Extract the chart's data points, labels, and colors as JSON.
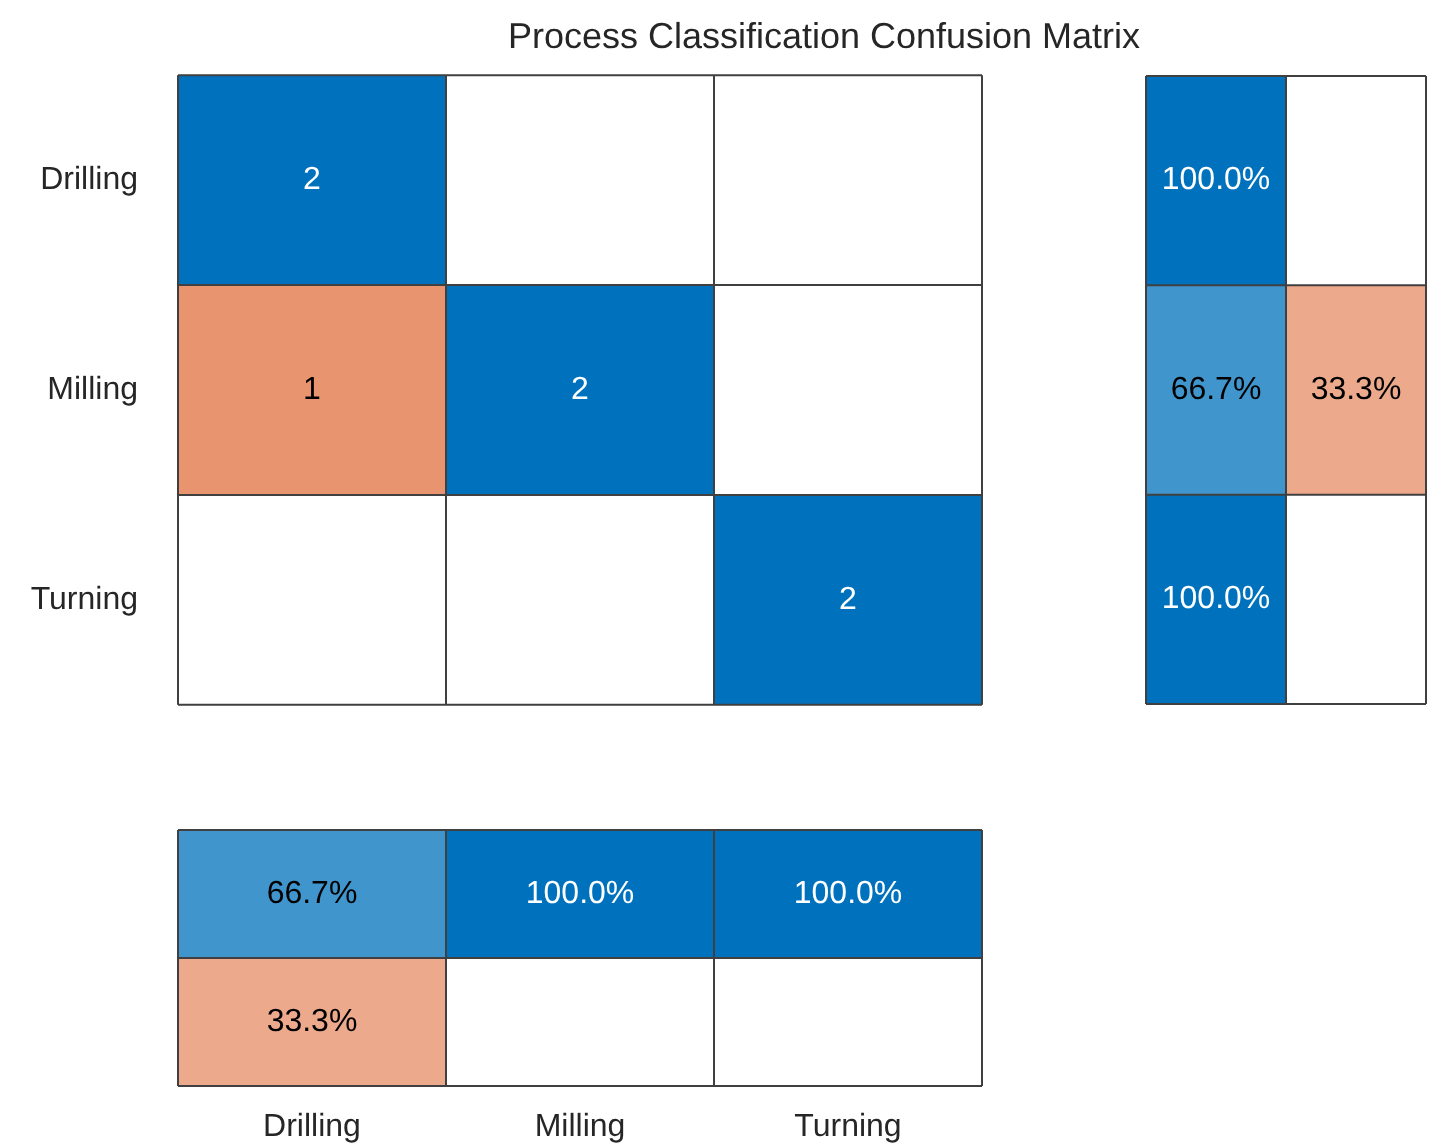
{
  "chart_data": [
    {
      "type": "heatmap",
      "title": "Process Classification Confusion Matrix",
      "categories": [
        null,
        null,
        null
      ],
      "y_categories": [
        "Drilling",
        "Milling",
        "Turning"
      ],
      "cells": [
        [
          2,
          null,
          null
        ],
        [
          1,
          2,
          null
        ],
        [
          null,
          null,
          2
        ]
      ],
      "data_labels": true,
      "colors": [
        "#0072bd",
        "#d95319"
      ],
      "tick_labels": "y"
    },
    {
      "type": "heatmap",
      "categories": [
        null,
        null
      ],
      "y_categories": [
        null,
        null,
        null
      ],
      "cells": [
        [
          100.0,
          null
        ],
        [
          66.7,
          33.3
        ],
        [
          100.0,
          null
        ]
      ],
      "cell_labels": [
        [
          "100.0%",
          null
        ],
        [
          "66.7%",
          "33.3%"
        ],
        [
          "100.0%",
          null
        ]
      ],
      "colors": [
        "#0072bd",
        "#d95319"
      ],
      "tick_labels": false
    },
    {
      "type": "heatmap",
      "categories": [
        "Drilling",
        "Milling",
        "Turning"
      ],
      "y_categories": [
        null,
        null
      ],
      "cells": [
        [
          66.7,
          100.0,
          100.0
        ],
        [
          33.3,
          null,
          null
        ]
      ],
      "cell_labels": [
        [
          "66.7%",
          "100.0%",
          "100.0%"
        ],
        [
          "33.3%",
          null,
          null
        ]
      ],
      "colors": [
        "#0072bd",
        "#d95319"
      ],
      "tick_labels": "x"
    }
  ]
}
